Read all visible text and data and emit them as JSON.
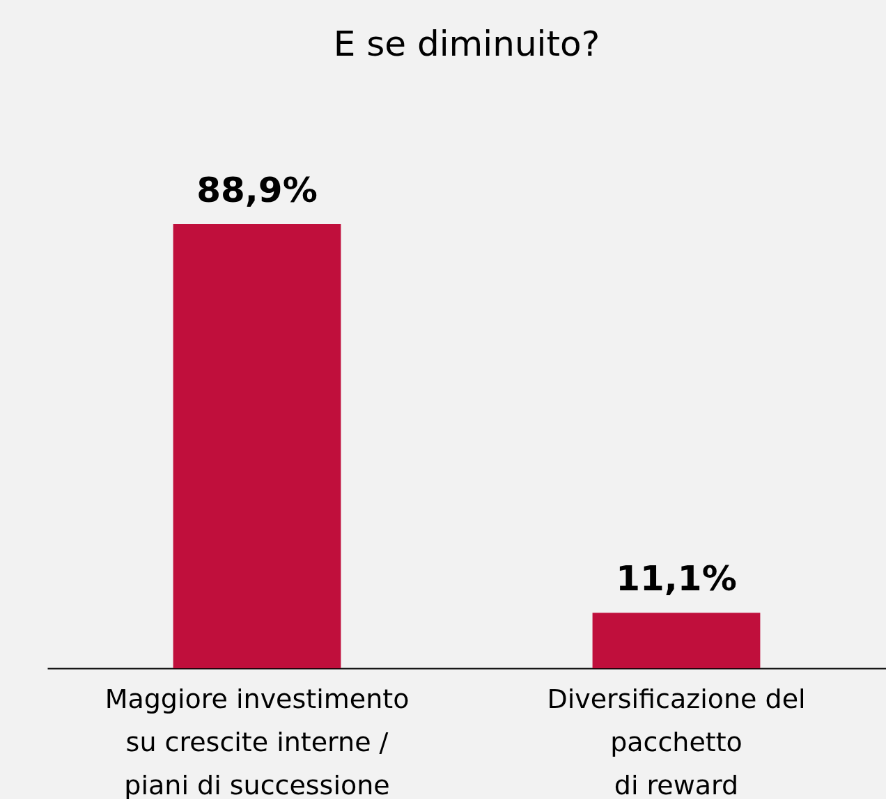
{
  "chart_data": {
    "type": "bar",
    "title": "E se diminuito?",
    "categories": [
      "Maggiore investimento\nsu crescite interne /\npiani di successione",
      "Diversificazione del\npacchetto\ndi reward"
    ],
    "values": [
      88.9,
      11.1
    ],
    "value_labels": [
      "88,9%",
      "11,1%"
    ],
    "color": "#c00f3c",
    "grid": false
  }
}
